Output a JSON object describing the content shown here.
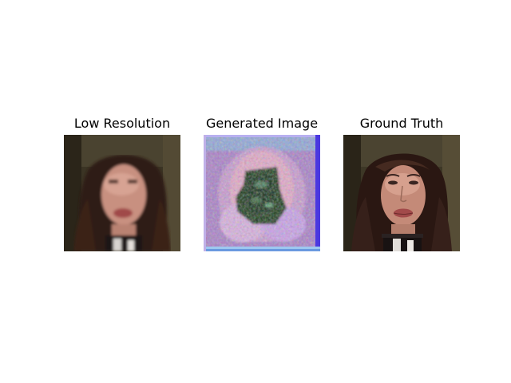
{
  "panels": [
    {
      "title": "Low Resolution"
    },
    {
      "title": "Generated Image"
    },
    {
      "title": "Ground Truth"
    }
  ],
  "colors": {
    "background": "#ffffff",
    "title_text": "#000000"
  }
}
